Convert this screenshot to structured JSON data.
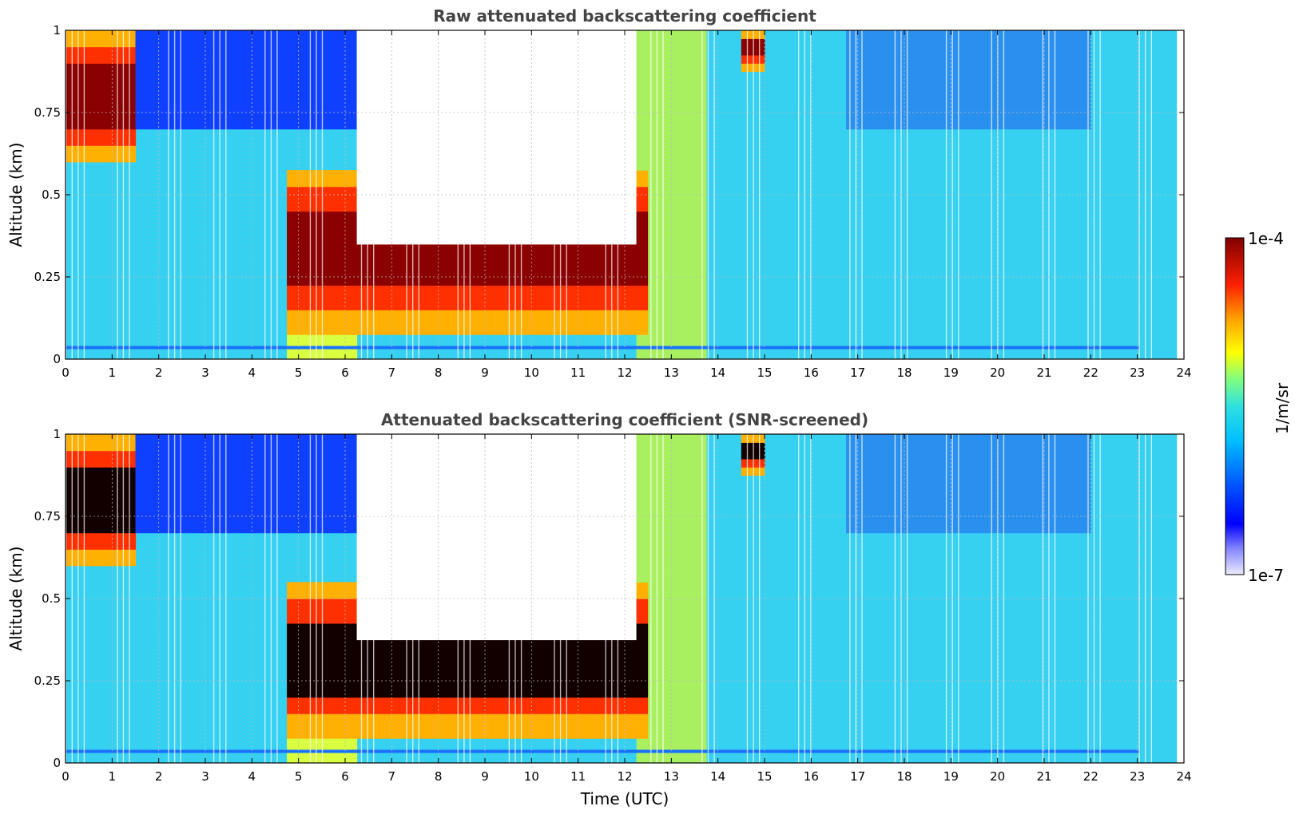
{
  "chart_data": [
    {
      "type": "heatmap",
      "title": "Raw attenuated backscattering coefficient",
      "xlabel": "",
      "ylabel": "Altitude (km)",
      "xlim": [
        0,
        24
      ],
      "ylim": [
        0,
        1
      ],
      "x_ticks": [
        "0",
        "1",
        "2",
        "3",
        "4",
        "5",
        "6",
        "7",
        "8",
        "9",
        "10",
        "11",
        "12",
        "13",
        "14",
        "15",
        "16",
        "17",
        "18",
        "19",
        "20",
        "21",
        "22",
        "23",
        "24"
      ],
      "y_ticks": [
        "0",
        "0.25",
        "0.5",
        "0.75",
        "1"
      ],
      "y_tick_values": [
        0,
        0.25,
        0.5,
        0.75,
        1
      ],
      "grid": true,
      "features": [
        {
          "kind": "cloud_layer",
          "t_start": 0,
          "t_end": 1.6,
          "top": 1.0,
          "base": 0.6
        },
        {
          "kind": "cloud_layer",
          "t_start": 4.8,
          "t_end": 12.5,
          "top": 0.58,
          "base": 0.08
        },
        {
          "kind": "cloud_layer",
          "t_start": 14.4,
          "t_end": 14.9,
          "top": 1.0,
          "base": 0.88
        },
        {
          "kind": "no_signal",
          "t_start": 6.2,
          "t_end": 12.3,
          "top": 1.0,
          "base": 0.35
        }
      ]
    },
    {
      "type": "heatmap",
      "title": "Attenuated backscattering coefficient (SNR-screened)",
      "xlabel": "Time (UTC)",
      "ylabel": "Altitude (km)",
      "xlim": [
        0,
        24
      ],
      "ylim": [
        0,
        1
      ],
      "x_ticks": [
        "0",
        "1",
        "2",
        "3",
        "4",
        "5",
        "6",
        "7",
        "8",
        "9",
        "10",
        "11",
        "12",
        "13",
        "14",
        "15",
        "16",
        "17",
        "18",
        "19",
        "20",
        "21",
        "22",
        "23",
        "24"
      ],
      "y_ticks": [
        "0",
        "0.25",
        "0.5",
        "0.75",
        "1"
      ],
      "y_tick_values": [
        0,
        0.25,
        0.5,
        0.75,
        1
      ],
      "grid": true,
      "features": [
        {
          "kind": "cloud_layer",
          "t_start": 0,
          "t_end": 1.6,
          "top": 1.0,
          "base": 0.6
        },
        {
          "kind": "cloud_layer",
          "t_start": 4.8,
          "t_end": 12.5,
          "top": 0.55,
          "base": 0.08
        },
        {
          "kind": "cloud_layer",
          "t_start": 14.4,
          "t_end": 14.9,
          "top": 1.0,
          "base": 0.88
        },
        {
          "kind": "no_signal",
          "t_start": 6.2,
          "t_end": 12.3,
          "top": 1.0,
          "base": 0.38
        }
      ]
    }
  ],
  "colorbar": {
    "label": "1/m/sr",
    "max_label": "1e-4",
    "min_label": "1e-7",
    "colors": [
      "#e8e8ff",
      "#0000ff",
      "#00c8ff",
      "#40e0d0",
      "#ffff00",
      "#ff8000",
      "#ff0000",
      "#800000"
    ]
  }
}
